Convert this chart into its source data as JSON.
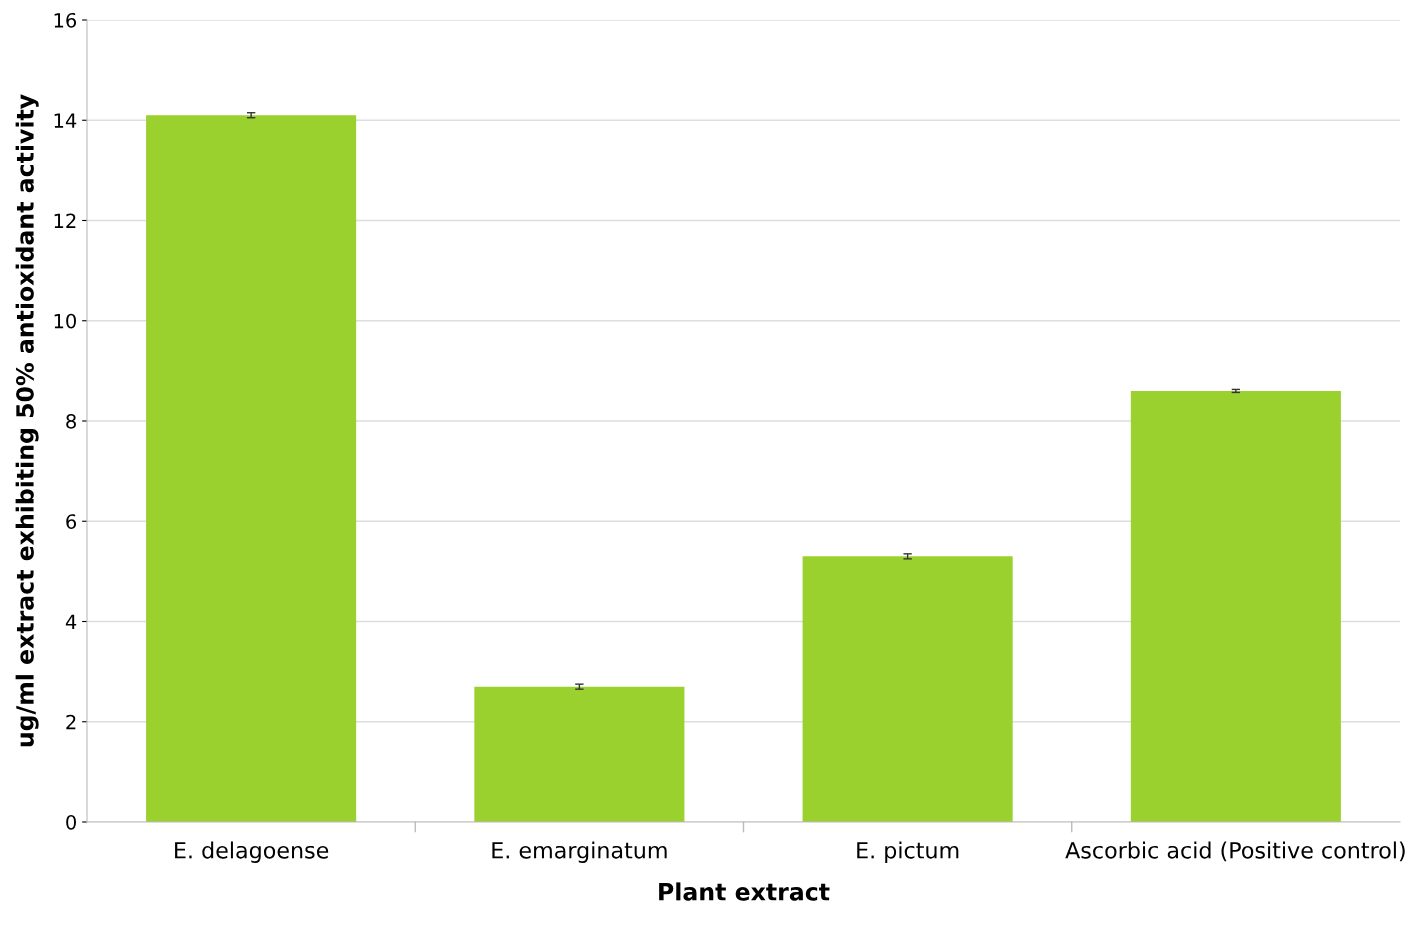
{
  "chart_data": {
    "type": "bar",
    "xlabel": "Plant extract",
    "ylabel": "ug/ml extract exhibiting 50% antioxidant activity",
    "categories": [
      "E. delagoense",
      "E. emarginatum",
      "E. pictum",
      "Ascorbic acid (Positive control)"
    ],
    "values": [
      14.1,
      2.7,
      5.3,
      8.6
    ],
    "errors": [
      0.05,
      0.05,
      0.05,
      0.03
    ],
    "color": "#9ad12f",
    "ylim": [
      0,
      16
    ],
    "yticks": [
      0,
      2,
      4,
      6,
      8,
      10,
      12,
      14,
      16
    ],
    "grid": "y"
  }
}
